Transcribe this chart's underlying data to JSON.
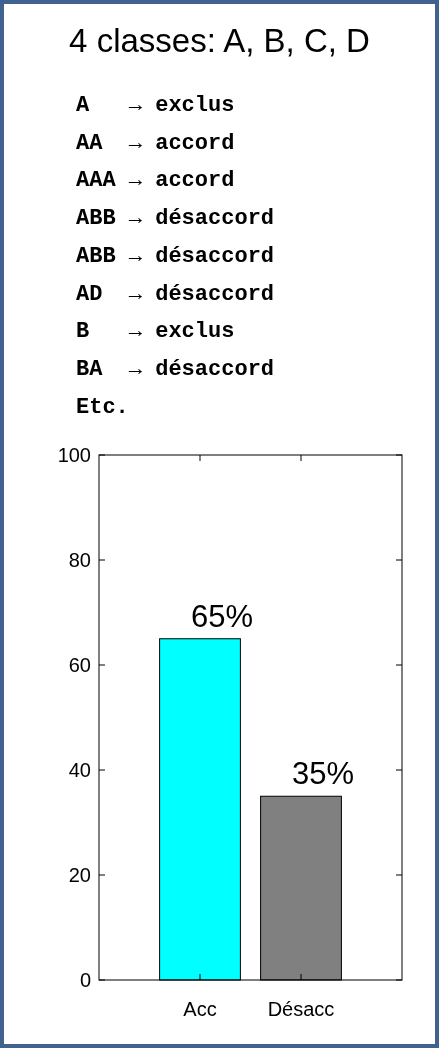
{
  "chart_data": {
    "type": "bar",
    "title": "4 classes: A, B, C, D",
    "annotations": [
      "A   → exclus",
      "AA  → accord",
      "AAA → accord",
      "ABB → désaccord",
      "ABB → désaccord",
      "AD  → désaccord",
      "B   → exclus",
      "BA  → désaccord",
      "Etc."
    ],
    "categories": [
      "Acc",
      "Désacc"
    ],
    "values": [
      65,
      35
    ],
    "colors": [
      "#00ffff",
      "#808080"
    ],
    "value_labels": [
      "65%",
      "35%"
    ],
    "ylim": [
      0,
      100
    ],
    "yticks": [
      0,
      20,
      40,
      60,
      80,
      100
    ],
    "grid": false
  }
}
